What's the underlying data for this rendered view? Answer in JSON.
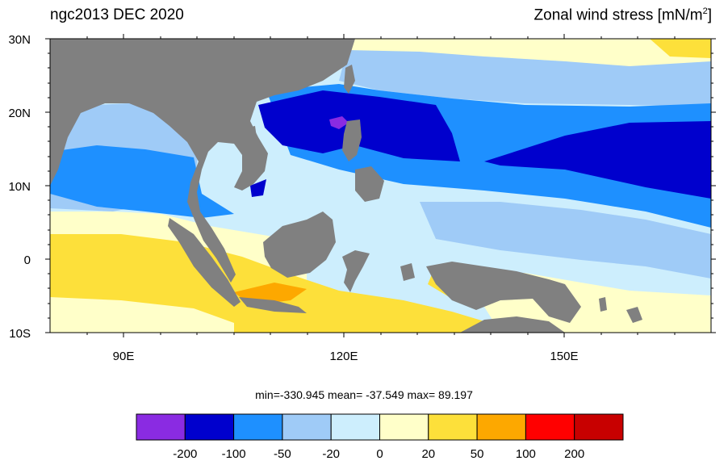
{
  "title_left": "ngc2013 DEC 2020",
  "title_right_main": "Zonal wind stress [mN/m",
  "title_right_sup": "2",
  "title_right_end": "]",
  "lat_labels": [
    "30N",
    "20N",
    "10N",
    "0",
    "10S"
  ],
  "lon_labels": [
    "90E",
    "120E",
    "150E"
  ],
  "stats": {
    "min_label": "min=-330.945",
    "mean_label": "mean= -37.549",
    "max_label": "max=  89.197"
  },
  "colorbar": {
    "colors": [
      "#8a2be2",
      "#0000cd",
      "#1e90ff",
      "#9fcbf7",
      "#cdeefd",
      "#ffffc9",
      "#fde03a",
      "#fda800",
      "#ff0000",
      "#c80000"
    ],
    "labels": [
      "-200",
      "-100",
      "-50",
      "-20",
      "0",
      "20",
      "50",
      "100",
      "200"
    ]
  },
  "land_color": "#808080"
}
